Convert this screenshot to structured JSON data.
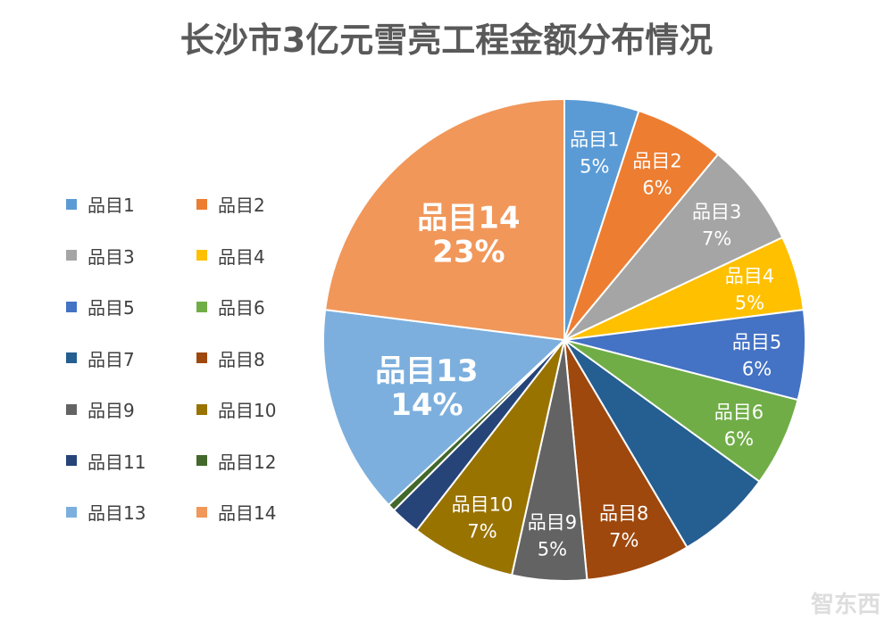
{
  "chart_data": {
    "type": "pie",
    "title": "长沙市3亿元雪亮工程金额分布情况",
    "categories": [
      "品目1",
      "品目2",
      "品目3",
      "品目4",
      "品目5",
      "品目6",
      "品目7",
      "品目8",
      "品目9",
      "品目10",
      "品目11",
      "品目12",
      "品目13",
      "品目14"
    ],
    "values": [
      5,
      6,
      7,
      5,
      6,
      6,
      6.5,
      7,
      5,
      7,
      2,
      0.5,
      14,
      23
    ],
    "labels": [
      "5%",
      "6%",
      "7%",
      "5%",
      "6%",
      "6%",
      "",
      "7%",
      "5%",
      "7%",
      "",
      "",
      "14%",
      "23%"
    ],
    "colors": [
      "#5B9BD5",
      "#ED7D31",
      "#A5A5A5",
      "#FFC000",
      "#4472C4",
      "#70AD47",
      "#255E91",
      "#9E480E",
      "#636363",
      "#997300",
      "#264478",
      "#43682B",
      "#7CAFDD",
      "#F1975A"
    ],
    "start": "12 o'clock, clockwise",
    "legend": "left"
  },
  "watermark": "智东西"
}
